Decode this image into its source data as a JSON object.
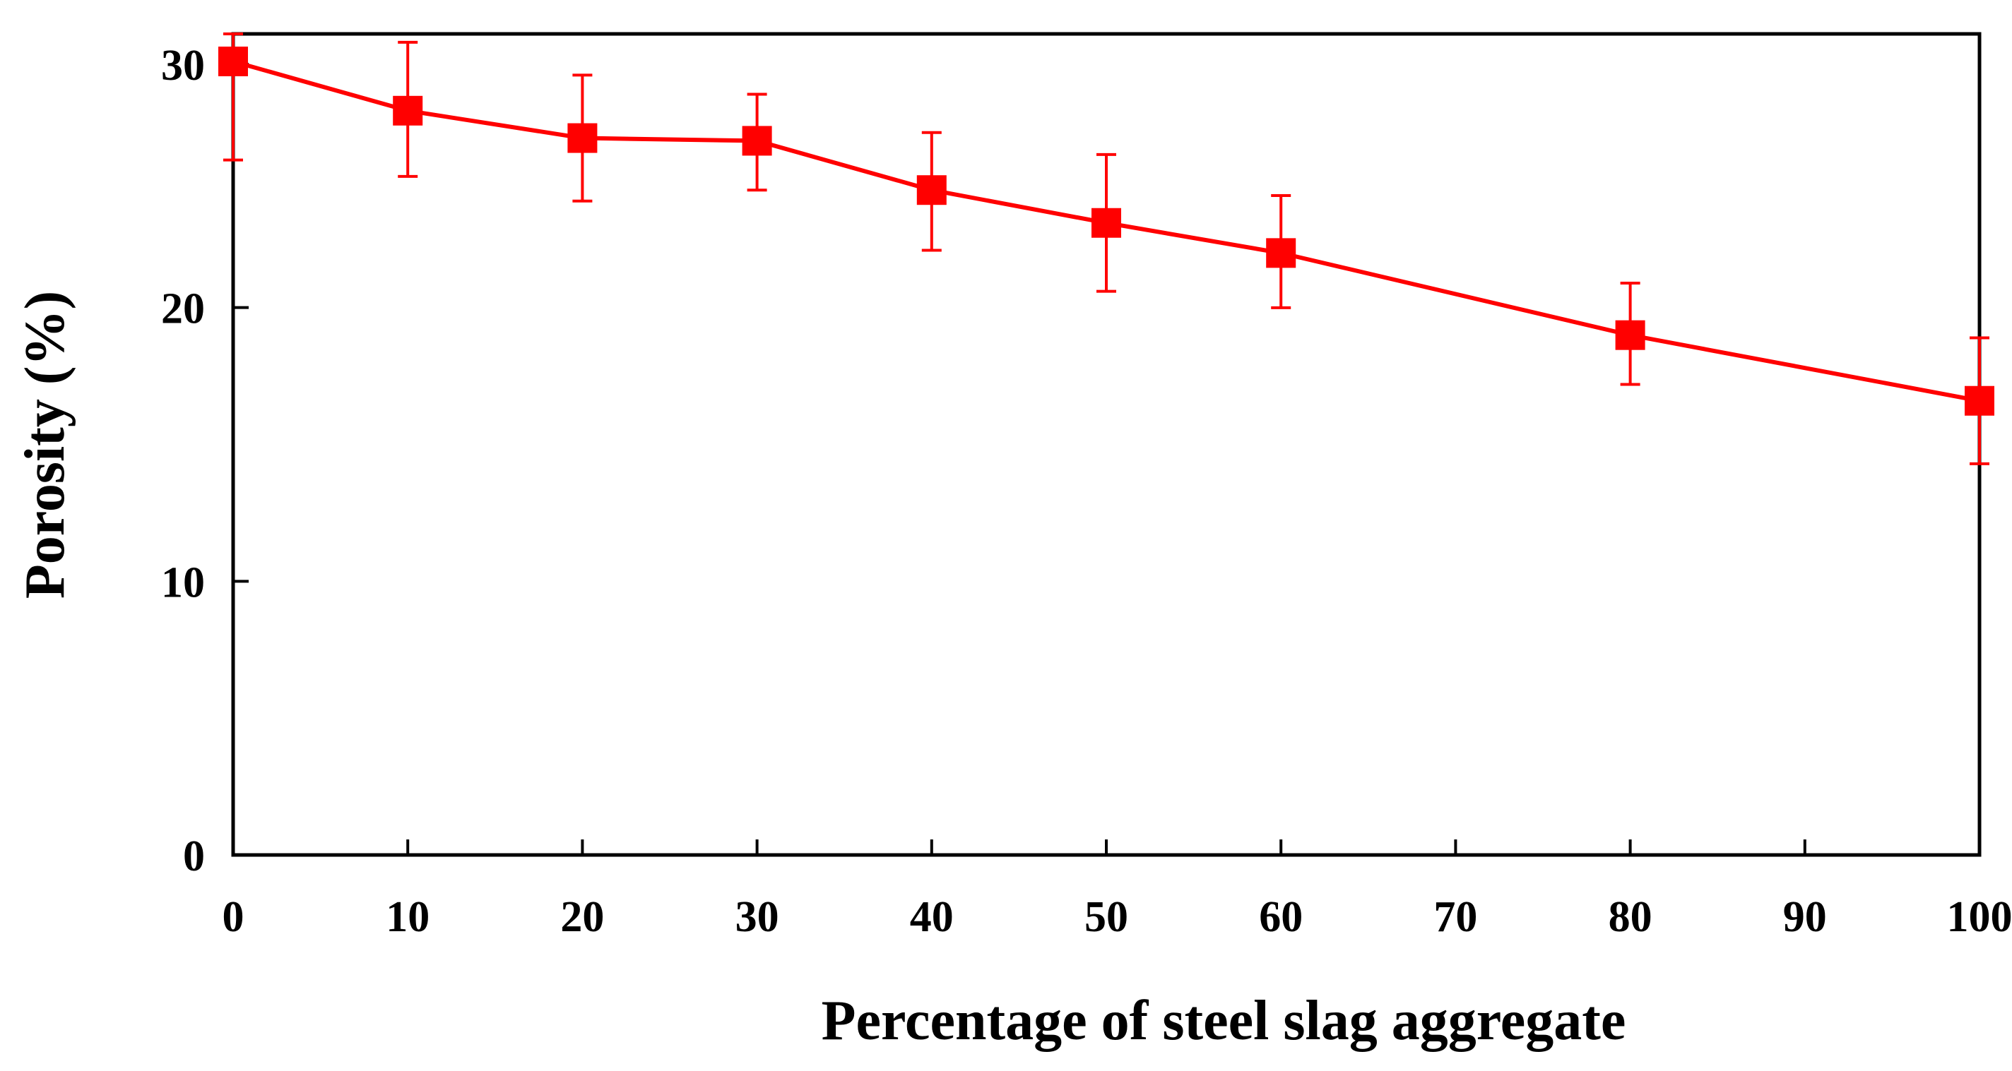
{
  "chart_data": {
    "type": "line",
    "title": "",
    "xlabel": "Percentage of steel slag aggregate",
    "ylabel": "Porosity (%)",
    "xlim": [
      0,
      100
    ],
    "ylim": [
      0,
      30
    ],
    "xticks": [
      0,
      10,
      20,
      30,
      40,
      50,
      60,
      70,
      80,
      90,
      100
    ],
    "yticks": [
      0,
      10,
      20,
      30
    ],
    "xtick_labels": [
      "0",
      "10",
      "20",
      "30",
      "40",
      "50",
      "60",
      "70",
      "80",
      "90",
      "100"
    ],
    "ytick_labels": [
      "0",
      "10",
      "20",
      "30"
    ],
    "grid": false,
    "legend": null,
    "series": [
      {
        "name": "Porosity",
        "color": "#ff0000",
        "marker": "square",
        "x": [
          0,
          10,
          20,
          30,
          40,
          50,
          60,
          80,
          100
        ],
        "y": [
          29.2,
          27.4,
          26.4,
          26.3,
          24.5,
          23.3,
          22.2,
          19.2,
          16.8
        ],
        "error_upper": [
          30.9,
          29.9,
          28.7,
          28.0,
          26.6,
          25.8,
          24.3,
          21.1,
          19.1
        ],
        "error_lower": [
          25.6,
          25.0,
          24.1,
          24.5,
          22.3,
          20.8,
          20.2,
          17.4,
          14.5
        ]
      }
    ]
  }
}
